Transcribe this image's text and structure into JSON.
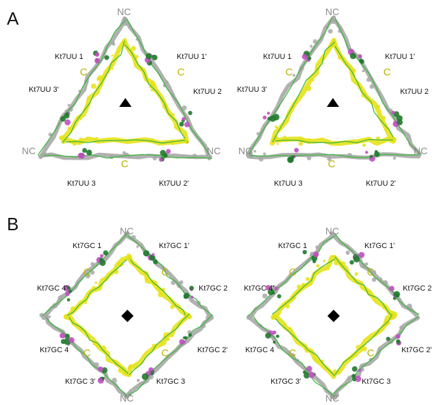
{
  "panels": [
    {
      "letter": "A",
      "symbol": "triangle",
      "nc_labels": [
        "NC",
        "NC",
        "NC"
      ],
      "c_labels": [
        "C",
        "C",
        "C"
      ],
      "kt_labels": [
        "Kt7UU 1",
        "Kt7UU 1'",
        "Kt7UU 2",
        "Kt7UU 2'",
        "Kt7UU 3",
        "Kt7UU 3'"
      ]
    },
    {
      "letter": "B",
      "symbol": "diamond",
      "nc_labels": [
        "NC",
        "NC"
      ],
      "c_labels": [
        "C",
        "C",
        "C",
        "C"
      ],
      "kt_labels": [
        "Kt7GC 1",
        "Kt7GC 1'",
        "Kt7GC 2",
        "Kt7GC 2'",
        "Kt7GC 3",
        "Kt7GC 3'",
        "Kt7GC 4",
        "Kt7GC 4'"
      ]
    }
  ],
  "colors": {
    "backbone": "#3cb83c",
    "nc_strand": "#a8a8a8",
    "c_strand": "#e6e21a",
    "kink_turn": "#c050c0",
    "dark_green": "#1f7a2c",
    "symbol": "#000000"
  }
}
